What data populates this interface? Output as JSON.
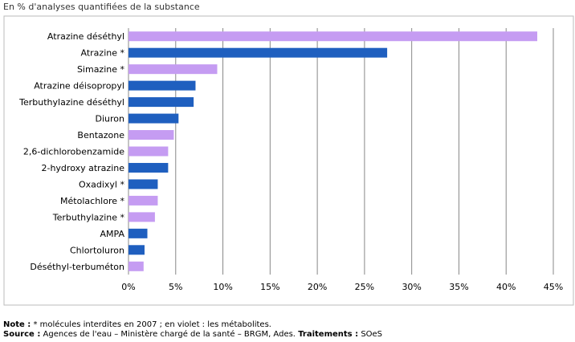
{
  "chart_data": {
    "type": "bar",
    "orientation": "horizontal",
    "subtitle": "En % d'analyses quantifiées de la substance",
    "categories": [
      "Atrazine déséthyl",
      "Atrazine *",
      "Simazine *",
      "Atrazine déisopropyl",
      "Terbuthylazine déséthyl",
      "Diuron",
      "Bentazone",
      "2,6-dichlorobenzamide",
      "2-hydroxy atrazine",
      "Oxadixyl *",
      "Métolachlore *",
      "Terbuthylazine *",
      "AMPA",
      "Chlortoluron",
      "Déséthyl-terbuméton"
    ],
    "values": [
      43.3,
      27.4,
      9.4,
      7.1,
      6.9,
      5.3,
      4.8,
      4.2,
      4.2,
      3.1,
      3.1,
      2.8,
      2.0,
      1.7,
      1.6
    ],
    "colors": [
      "#c59cf2",
      "#1f5fbf",
      "#c59cf2",
      "#1f5fbf",
      "#1f5fbf",
      "#1f5fbf",
      "#c59cf2",
      "#c59cf2",
      "#1f5fbf",
      "#1f5fbf",
      "#c59cf2",
      "#c59cf2",
      "#1f5fbf",
      "#1f5fbf",
      "#c59cf2"
    ],
    "xlim": [
      0,
      45
    ],
    "xticks": [
      {
        "value": 0,
        "label": "0%"
      },
      {
        "value": 5,
        "label": "5%"
      },
      {
        "value": 10,
        "label": "10%"
      },
      {
        "value": 15,
        "label": "15%"
      },
      {
        "value": 20,
        "label": "20%"
      },
      {
        "value": 25,
        "label": "25%"
      },
      {
        "value": 30,
        "label": "30%"
      },
      {
        "value": 35,
        "label": "35%"
      },
      {
        "value": 40,
        "label": "40%"
      },
      {
        "value": 45,
        "label": "45%"
      }
    ],
    "grid": true
  },
  "notes": {
    "note_label": "Note :",
    "note_text": "* molécules interdites en 2007 ; en violet : les métabolites.",
    "source_label": "Source :",
    "source_text": "Agences de l'eau – Ministère chargé de la santé – BRGM, Ades.",
    "treatment_label": "Traitements :",
    "treatment_text": "SOeS"
  }
}
